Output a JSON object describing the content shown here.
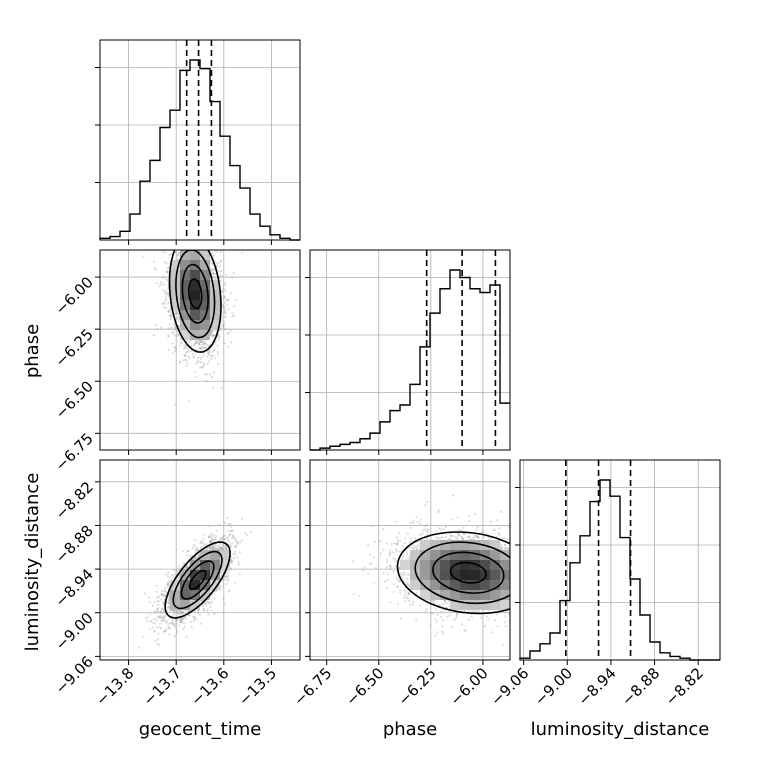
{
  "chart_data": {
    "type": "corner",
    "parameters": [
      "geocent_time",
      "phase",
      "luminosity_distance"
    ],
    "axis_labels": {
      "geocent_time": "geocent_time",
      "phase": "phase",
      "luminosity_distance": "luminosity_distance"
    },
    "ticks": {
      "geocent_time": [
        "−13.8",
        "−13.7",
        "−13.6",
        "−13.5"
      ],
      "phase": [
        "−6.75",
        "−6.50",
        "−6.25",
        "−6.00"
      ],
      "luminosity_distance": [
        "−9.06",
        "−9.00",
        "−8.94",
        "−8.88",
        "−8.82"
      ]
    },
    "tick_values": {
      "geocent_time": [
        -13.8,
        -13.7,
        -13.6,
        -13.5
      ],
      "phase": [
        -6.75,
        -6.5,
        -6.25,
        -6.0
      ],
      "luminosity_distance": [
        -9.06,
        -9.0,
        -8.94,
        -8.88,
        -8.82
      ]
    },
    "ranges": {
      "geocent_time": [
        -13.86,
        -13.44
      ],
      "phase": [
        -6.83,
        -5.87
      ],
      "luminosity_distance": [
        -9.065,
        -8.79
      ]
    },
    "histograms": {
      "geocent_time": {
        "bins": 20,
        "counts": [
          0.01,
          0.02,
          0.05,
          0.15,
          0.34,
          0.46,
          0.65,
          0.75,
          0.98,
          1.04,
          0.99,
          0.8,
          0.6,
          0.43,
          0.3,
          0.15,
          0.08,
          0.03,
          0.01,
          0.0
        ],
        "quantiles": [
          -13.678,
          -13.653,
          -13.626
        ]
      },
      "phase": {
        "bins": 20,
        "counts": [
          0.0,
          0.01,
          0.02,
          0.03,
          0.04,
          0.06,
          0.09,
          0.15,
          0.21,
          0.24,
          0.35,
          0.55,
          0.73,
          0.86,
          0.96,
          0.92,
          0.86,
          0.84,
          0.88,
          0.25
        ],
        "quantiles": [
          -6.27,
          -6.1,
          -5.94
        ]
      },
      "luminosity_distance": {
        "bins": 20,
        "counts": [
          0.01,
          0.05,
          0.09,
          0.15,
          0.33,
          0.54,
          0.69,
          0.88,
          1.0,
          0.91,
          0.68,
          0.45,
          0.25,
          0.1,
          0.04,
          0.02,
          0.01,
          0.0,
          0.0,
          0.0
        ],
        "quantiles": [
          -9.002,
          -8.957,
          -8.913
        ]
      }
    },
    "panels_2d": [
      {
        "x": "geocent_time",
        "y": "phase",
        "mean": [
          -13.66,
          -6.08
        ],
        "sigma": [
          0.027,
          0.14
        ],
        "corr": -0.2
      },
      {
        "x": "geocent_time",
        "y": "luminosity_distance",
        "mean": [
          -13.655,
          -8.955
        ],
        "sigma": [
          0.034,
          0.026
        ],
        "corr": 0.7
      },
      {
        "x": "phase",
        "y": "luminosity_distance",
        "mean": [
          -6.07,
          -8.945
        ],
        "sigma": [
          0.17,
          0.028
        ],
        "corr": -0.15
      }
    ],
    "grid": true
  }
}
